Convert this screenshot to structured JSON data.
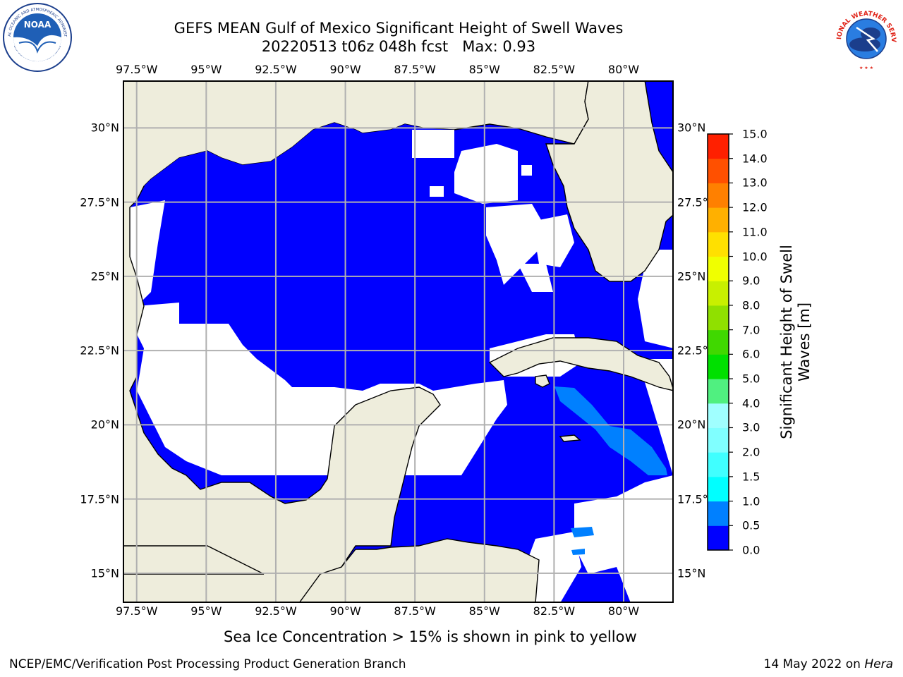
{
  "header": {
    "title_line1": "GEFS MEAN Gulf of Mexico Significant Height of Swell Waves",
    "title_line2": "20220513 t06z 048h fcst   Max: 0.93"
  },
  "map": {
    "longitude_labels": [
      "97.5°W",
      "95°W",
      "92.5°W",
      "90°W",
      "87.5°W",
      "85°W",
      "82.5°W",
      "80°W"
    ],
    "latitude_labels": [
      "30°N",
      "27.5°N",
      "25°N",
      "22.5°N",
      "20°N",
      "17.5°N",
      "15°N"
    ],
    "extent": {
      "lon_min": -98.0,
      "lon_max": -78.2,
      "lat_min": 14.0,
      "lat_max": 31.6
    },
    "grid": true,
    "land_color": "#eeeddc",
    "no_data_color": "#ffffff"
  },
  "colorbar": {
    "label": "Significant Height of Swell Waves [m]",
    "label_line1": "Significant Height of Swell",
    "label_line2": "Waves [m]",
    "ticks": [
      "15.0",
      "14.0",
      "13.0",
      "12.0",
      "11.0",
      "10.0",
      "9.0",
      "8.0",
      "7.0",
      "6.0",
      "5.0",
      "4.0",
      "3.0",
      "2.0",
      "1.5",
      "1.0",
      "0.5",
      "0.0"
    ],
    "levels": [
      0.0,
      0.5,
      1.0,
      1.5,
      2.0,
      3.0,
      4.0,
      5.0,
      6.0,
      7.0,
      8.0,
      9.0,
      10.0,
      11.0,
      12.0,
      13.0,
      14.0,
      15.0
    ],
    "colors": [
      "#0000ff",
      "#0080ff",
      "#00ffff",
      "#40ffff",
      "#80ffff",
      "#a0ffff",
      "#50f080",
      "#00e000",
      "#40d800",
      "#90e000",
      "#c8f000",
      "#f0ff00",
      "#ffe000",
      "#ffb000",
      "#ff8000",
      "#ff5000",
      "#ff2000",
      "#ff0000"
    ]
  },
  "field": {
    "max_value": "0.93",
    "dominant_range": "0.0-0.5",
    "secondary_range": "0.5-1.0"
  },
  "note": "Sea Ice Concentration > 15% is shown in pink to yellow",
  "footer": {
    "left": "NCEP/EMC/Verification Post Processing Product Generation Branch",
    "date": "14 May 2022 on ",
    "machine": "Hera"
  },
  "logos": {
    "noaa_text": "NOAA",
    "noaa_ring": "NATIONAL OCEANIC AND ATMOSPHERIC ADMINISTRATION",
    "noaa_ring_bottom": "U.S. DEPARTMENT OF COMMERCE",
    "nws_ring": "NATIONAL WEATHER SERVICE"
  }
}
